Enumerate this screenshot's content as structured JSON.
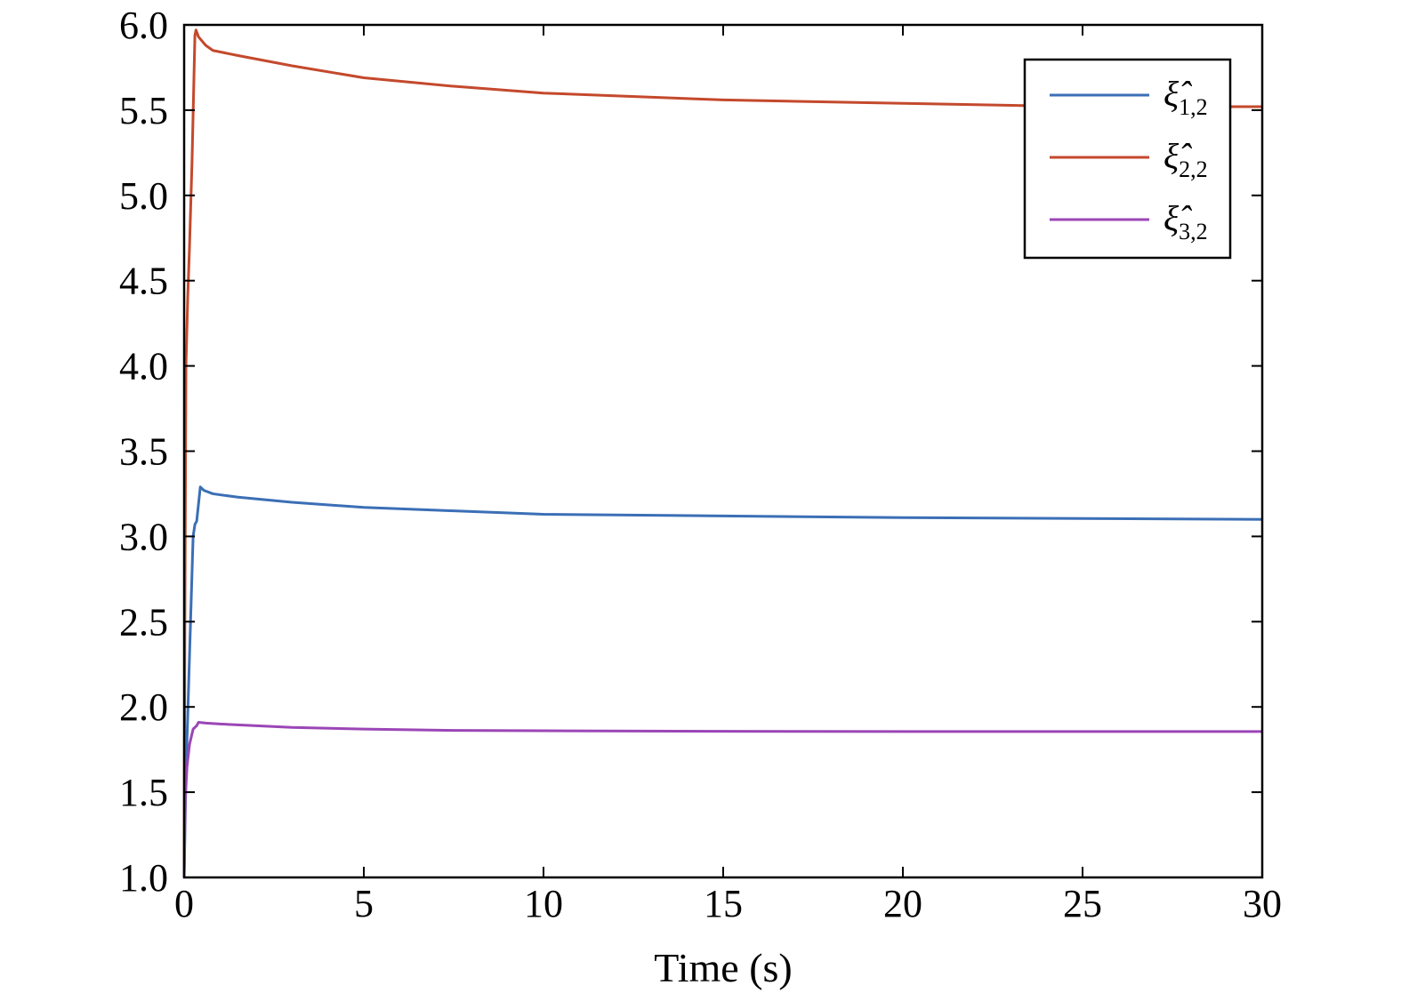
{
  "chart_data": {
    "type": "line",
    "title": "",
    "xlabel": "Time (s)",
    "ylabel": "",
    "xlim": [
      0,
      30
    ],
    "ylim": [
      1.0,
      6.0
    ],
    "xticks": [
      0,
      5,
      10,
      15,
      20,
      25,
      30
    ],
    "xtick_labels": [
      "0",
      "5",
      "10",
      "15",
      "20",
      "25",
      "30"
    ],
    "yticks": [
      1.0,
      1.5,
      2.0,
      2.5,
      3.0,
      3.5,
      4.0,
      4.5,
      5.0,
      5.5,
      6.0
    ],
    "ytick_labels": [
      "1.0",
      "1.5",
      "2.0",
      "2.5",
      "3.0",
      "3.5",
      "4.0",
      "4.5",
      "5.0",
      "5.5",
      "6.0"
    ],
    "grid": false,
    "legend_position": "top-right",
    "series": [
      {
        "name": "ξ̂1,2",
        "legend_symbol": "ξ̂",
        "legend_subscript": "1,2",
        "color": "#3b6fb6",
        "x": [
          0,
          0.05,
          0.15,
          0.25,
          0.3,
          0.35,
          0.45,
          0.55,
          0.8,
          1.5,
          3,
          5,
          7.5,
          10,
          15,
          20,
          25,
          30
        ],
        "y": [
          1.0,
          1.6,
          2.3,
          3.0,
          3.07,
          3.09,
          3.29,
          3.27,
          3.25,
          3.23,
          3.2,
          3.17,
          3.15,
          3.13,
          3.12,
          3.11,
          3.105,
          3.1
        ]
      },
      {
        "name": "ξ̂2,2",
        "legend_symbol": "ξ̂",
        "legend_subscript": "2,2",
        "color": "#c4492c",
        "x": [
          0,
          0.02,
          0.05,
          0.1,
          0.15,
          0.22,
          0.3,
          0.33,
          0.4,
          0.6,
          0.8,
          1.5,
          3,
          5,
          7.5,
          10,
          15,
          20,
          25,
          30
        ],
        "y": [
          1.0,
          2.5,
          4.0,
          4.4,
          4.7,
          5.2,
          5.94,
          5.97,
          5.93,
          5.88,
          5.85,
          5.82,
          5.76,
          5.69,
          5.64,
          5.6,
          5.56,
          5.54,
          5.52,
          5.52
        ]
      },
      {
        "name": "ξ̂3,2",
        "legend_symbol": "ξ̂",
        "legend_subscript": "3,2",
        "color": "#9b46b6",
        "x": [
          0,
          0.03,
          0.08,
          0.15,
          0.25,
          0.35,
          0.4,
          0.6,
          1,
          3,
          5,
          7.5,
          10,
          15,
          20,
          25,
          30
        ],
        "y": [
          1.0,
          1.45,
          1.65,
          1.78,
          1.87,
          1.89,
          1.91,
          1.905,
          1.9,
          1.88,
          1.87,
          1.862,
          1.86,
          1.857,
          1.856,
          1.856,
          1.856
        ]
      }
    ]
  }
}
